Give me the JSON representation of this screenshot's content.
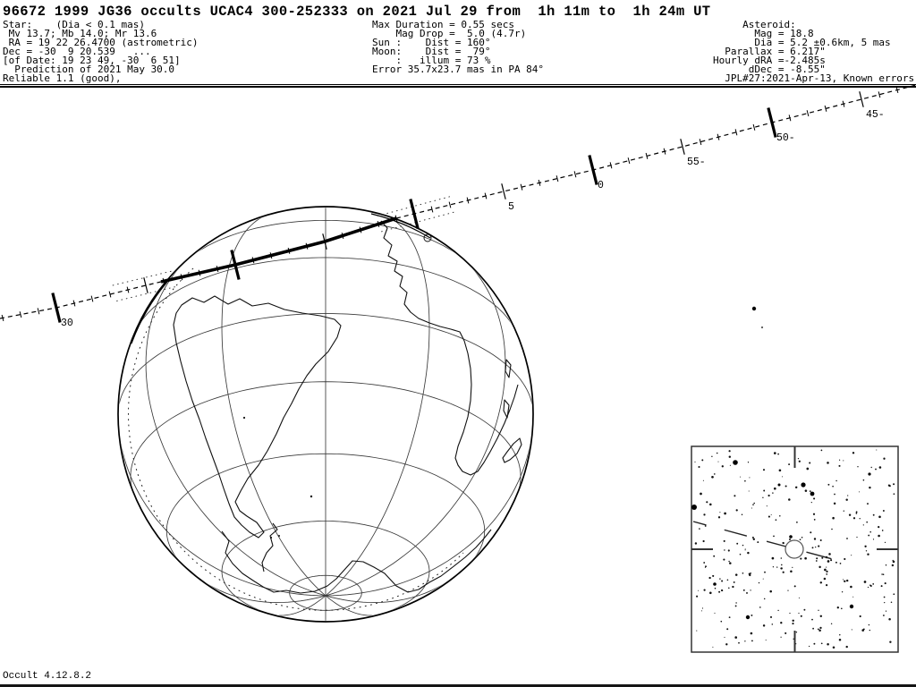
{
  "header": {
    "title": "96672 1999 JG36 occults UCAC4 300-252333 on 2021 Jul 29 from  1h 11m to  1h 24m UT",
    "star_block": [
      "Star:    (Dia < 0.1 mas)",
      " Mv 13.7; Mb 14.0; Mr 13.6",
      " RA = 19 22 26.4700 (astrometric)",
      "Dec = -30  9 20.539   ...",
      "[of Date: 19 23 49, -30  6 51]",
      "  Prediction of 2021 May 30.0",
      "Reliable 1.1 (good),"
    ],
    "event_block": [
      "Max Duration = 0.55 secs",
      "    Mag Drop =  5.0 (4.7r)",
      "Sun :    Dist = 160°",
      "Moon:    Dist =  79°",
      "    :   illum = 73 %",
      "Error 35.7x23.7 mas in PA 84°"
    ],
    "asteroid_block": [
      "     Asteroid:",
      "       Mag = 18.8",
      "       Dia = 5.2 ±0.6km, 5 mas",
      "  Parallax = 6.217\"",
      "Hourly dRA =-2.485s",
      "      dDec = -8.55\"",
      "  JPL#27:2021-Apr-13, Known errors"
    ]
  },
  "path": {
    "time_tick_labels": [
      "30",
      "5",
      "0",
      "55-",
      "50-",
      "45-"
    ]
  },
  "footer": {
    "version": "Occult 4.12.8.2"
  }
}
